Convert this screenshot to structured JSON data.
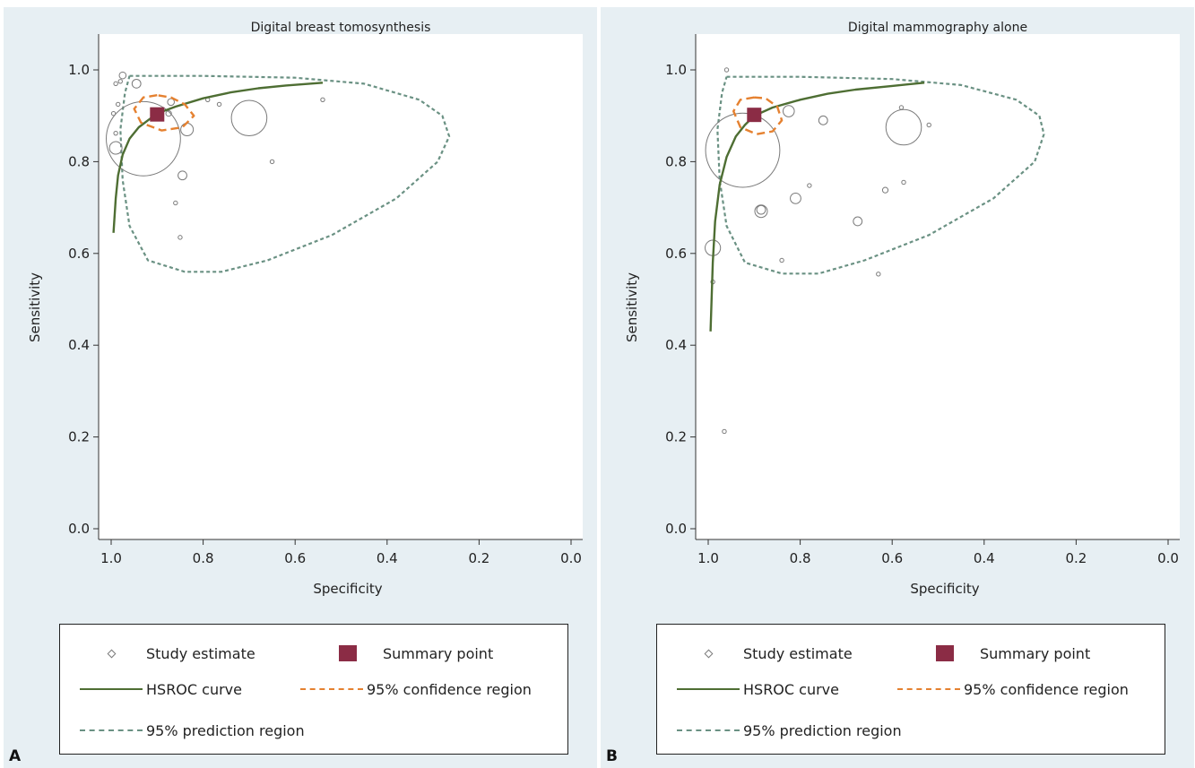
{
  "panels": [
    {
      "letter": "A",
      "legend": {
        "study": "Study estimate",
        "summary": "Summary point",
        "hsroc": "HSROC curve",
        "confidence": "95% confidence region",
        "prediction": "95% prediction region"
      }
    },
    {
      "letter": "B",
      "legend": {
        "study": "Study estimate",
        "summary": "Summary point",
        "hsroc": "HSROC curve",
        "confidence": "95% confidence region",
        "prediction": "95% prediction region"
      }
    }
  ],
  "colors": {
    "panel_bg": "#e7eff3",
    "hsroc": "#4e6e33",
    "confidence": "#e58130",
    "prediction": "#6a9183",
    "summary": "#8b2c45",
    "study": "#7a7a7a"
  },
  "chart_data": [
    {
      "type": "scatter",
      "title": "Digital breast tomosynthesis",
      "xlabel": "Specificity",
      "ylabel": "Sensitivity",
      "xlim": [
        1.0,
        0.0
      ],
      "ylim": [
        0.0,
        1.0
      ],
      "xticks": [
        "1.0",
        "0.8",
        "0.6",
        "0.4",
        "0.2",
        "0.0"
      ],
      "yticks": [
        "0.0",
        "0.2",
        "0.4",
        "0.6",
        "0.8",
        "1.0"
      ],
      "grid": false,
      "legend_position": "bottom",
      "summary_point": {
        "specificity": 0.9,
        "sensitivity": 0.903
      },
      "studies": [
        {
          "specificity": 0.975,
          "sensitivity": 0.988,
          "weight": 0.3
        },
        {
          "specificity": 0.98,
          "sensitivity": 0.975,
          "weight": 0.1
        },
        {
          "specificity": 0.99,
          "sensitivity": 0.97,
          "weight": 0.1
        },
        {
          "specificity": 0.945,
          "sensitivity": 0.97,
          "weight": 0.5
        },
        {
          "specificity": 0.985,
          "sensitivity": 0.925,
          "weight": 0.1
        },
        {
          "specificity": 0.995,
          "sensitivity": 0.905,
          "weight": 0.1
        },
        {
          "specificity": 0.99,
          "sensitivity": 0.862,
          "weight": 0.1
        },
        {
          "specificity": 0.99,
          "sensitivity": 0.83,
          "weight": 1.0
        },
        {
          "specificity": 0.93,
          "sensitivity": 0.85,
          "weight": 35
        },
        {
          "specificity": 0.87,
          "sensitivity": 0.93,
          "weight": 0.3
        },
        {
          "specificity": 0.875,
          "sensitivity": 0.905,
          "weight": 0.2
        },
        {
          "specificity": 0.835,
          "sensitivity": 0.87,
          "weight": 1.0
        },
        {
          "specificity": 0.845,
          "sensitivity": 0.77,
          "weight": 0.5
        },
        {
          "specificity": 0.86,
          "sensitivity": 0.71,
          "weight": 0.05
        },
        {
          "specificity": 0.85,
          "sensitivity": 0.635,
          "weight": 0.05
        },
        {
          "specificity": 0.79,
          "sensitivity": 0.935,
          "weight": 0.1
        },
        {
          "specificity": 0.765,
          "sensitivity": 0.925,
          "weight": 0.1
        },
        {
          "specificity": 0.7,
          "sensitivity": 0.895,
          "weight": 8
        },
        {
          "specificity": 0.65,
          "sensitivity": 0.8,
          "weight": 0.1
        },
        {
          "specificity": 0.54,
          "sensitivity": 0.935,
          "weight": 0.05
        }
      ],
      "hsroc_curve": {
        "specificity": [
          0.995,
          0.99,
          0.985,
          0.975,
          0.96,
          0.94,
          0.92,
          0.9,
          0.86,
          0.8,
          0.74,
          0.68,
          0.62,
          0.54
        ],
        "sensitivity": [
          0.645,
          0.72,
          0.77,
          0.815,
          0.85,
          0.875,
          0.89,
          0.905,
          0.92,
          0.938,
          0.951,
          0.96,
          0.966,
          0.972
        ]
      },
      "confidence_region": {
        "specificity": [
          0.9,
          0.93,
          0.95,
          0.935,
          0.89,
          0.845,
          0.82,
          0.84,
          0.87,
          0.9
        ],
        "sensitivity": [
          0.945,
          0.94,
          0.915,
          0.885,
          0.868,
          0.875,
          0.9,
          0.925,
          0.94,
          0.945
        ]
      },
      "prediction_region": {
        "specificity": [
          0.96,
          0.8,
          0.6,
          0.45,
          0.33,
          0.28,
          0.265,
          0.29,
          0.38,
          0.52,
          0.66,
          0.76,
          0.84,
          0.92,
          0.96,
          0.975,
          0.98,
          0.97,
          0.96
        ],
        "sensitivity": [
          0.987,
          0.987,
          0.983,
          0.97,
          0.935,
          0.9,
          0.855,
          0.8,
          0.72,
          0.64,
          0.585,
          0.56,
          0.56,
          0.585,
          0.66,
          0.76,
          0.87,
          0.95,
          0.987
        ]
      }
    },
    {
      "type": "scatter",
      "title": "Digital mammography alone",
      "xlabel": "Specificity",
      "ylabel": "Sensitivity",
      "xlim": [
        1.0,
        0.0
      ],
      "ylim": [
        0.0,
        1.0
      ],
      "xticks": [
        "1.0",
        "0.8",
        "0.6",
        "0.4",
        "0.2",
        "0.0"
      ],
      "yticks": [
        "0.0",
        "0.2",
        "0.4",
        "0.6",
        "0.8",
        "1.0"
      ],
      "grid": false,
      "legend_position": "bottom",
      "summary_point": {
        "specificity": 0.9,
        "sensitivity": 0.902
      },
      "studies": [
        {
          "specificity": 0.96,
          "sensitivity": 1.0,
          "weight": 0.05
        },
        {
          "specificity": 0.925,
          "sensitivity": 0.825,
          "weight": 35
        },
        {
          "specificity": 0.825,
          "sensitivity": 0.91,
          "weight": 0.8
        },
        {
          "specificity": 0.75,
          "sensitivity": 0.89,
          "weight": 0.5
        },
        {
          "specificity": 0.575,
          "sensitivity": 0.875,
          "weight": 8
        },
        {
          "specificity": 0.58,
          "sensitivity": 0.918,
          "weight": 0.05
        },
        {
          "specificity": 0.52,
          "sensitivity": 0.88,
          "weight": 0.05
        },
        {
          "specificity": 0.885,
          "sensitivity": 0.692,
          "weight": 1.0
        },
        {
          "specificity": 0.885,
          "sensitivity": 0.695,
          "weight": 0.5
        },
        {
          "specificity": 0.81,
          "sensitivity": 0.72,
          "weight": 0.7
        },
        {
          "specificity": 0.78,
          "sensitivity": 0.748,
          "weight": 0.05
        },
        {
          "specificity": 0.675,
          "sensitivity": 0.67,
          "weight": 0.5
        },
        {
          "specificity": 0.615,
          "sensitivity": 0.738,
          "weight": 0.2
        },
        {
          "specificity": 0.575,
          "sensitivity": 0.755,
          "weight": 0.05
        },
        {
          "specificity": 0.84,
          "sensitivity": 0.585,
          "weight": 0.05
        },
        {
          "specificity": 0.63,
          "sensitivity": 0.555,
          "weight": 0.05
        },
        {
          "specificity": 0.99,
          "sensitivity": 0.612,
          "weight": 1.5
        },
        {
          "specificity": 0.99,
          "sensitivity": 0.538,
          "weight": 0.05
        },
        {
          "specificity": 0.965,
          "sensitivity": 0.212,
          "weight": 0.05
        }
      ],
      "hsroc_curve": {
        "specificity": [
          0.995,
          0.99,
          0.985,
          0.975,
          0.96,
          0.94,
          0.92,
          0.9,
          0.86,
          0.8,
          0.74,
          0.68,
          0.6,
          0.53
        ],
        "sensitivity": [
          0.43,
          0.58,
          0.67,
          0.75,
          0.81,
          0.855,
          0.88,
          0.9,
          0.918,
          0.935,
          0.948,
          0.957,
          0.965,
          0.972
        ]
      },
      "confidence_region": {
        "specificity": [
          0.9,
          0.93,
          0.945,
          0.93,
          0.895,
          0.86,
          0.84,
          0.85,
          0.875,
          0.9
        ],
        "sensitivity": [
          0.94,
          0.935,
          0.91,
          0.875,
          0.86,
          0.866,
          0.89,
          0.92,
          0.938,
          0.94
        ]
      },
      "prediction_region": {
        "specificity": [
          0.96,
          0.8,
          0.6,
          0.45,
          0.33,
          0.28,
          0.27,
          0.29,
          0.38,
          0.52,
          0.66,
          0.76,
          0.84,
          0.92,
          0.96,
          0.975,
          0.98,
          0.97,
          0.96
        ],
        "sensitivity": [
          0.985,
          0.985,
          0.98,
          0.967,
          0.935,
          0.9,
          0.86,
          0.8,
          0.72,
          0.64,
          0.585,
          0.556,
          0.556,
          0.58,
          0.66,
          0.76,
          0.87,
          0.95,
          0.985
        ]
      }
    }
  ]
}
